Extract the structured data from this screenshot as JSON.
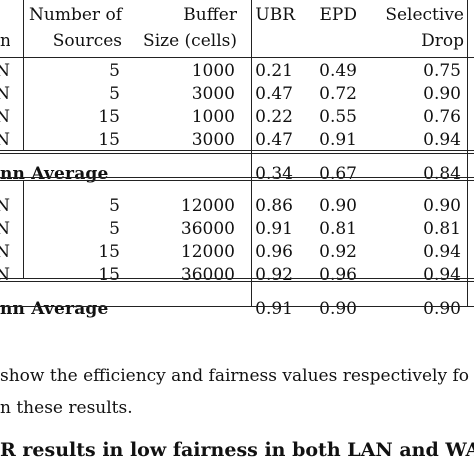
{
  "table": {
    "header": {
      "row1": {
        "sources": "Number of",
        "buffer": "Buffer",
        "ubr": "UBR",
        "epd": "EPD",
        "selective": "Selective"
      },
      "row2": {
        "config_tail": "n",
        "sources": "Sources",
        "buffer": "Size (cells)",
        "selective": "Drop"
      }
    },
    "lan_rows": [
      {
        "config": "N",
        "sources": "5",
        "buffer": "1000",
        "ubr": "0.21",
        "epd": "0.49",
        "selective": "0.75"
      },
      {
        "config": "N",
        "sources": "5",
        "buffer": "3000",
        "ubr": "0.47",
        "epd": "0.72",
        "selective": "0.90"
      },
      {
        "config": "N",
        "sources": "15",
        "buffer": "1000",
        "ubr": "0.22",
        "epd": "0.55",
        "selective": "0.76"
      },
      {
        "config": "N",
        "sources": "15",
        "buffer": "3000",
        "ubr": "0.47",
        "epd": "0.91",
        "selective": "0.94"
      }
    ],
    "lan_average": {
      "label": "nn Average",
      "ubr": "0.34",
      "epd": "0.67",
      "selective": "0.84"
    },
    "wan_rows": [
      {
        "config": "N",
        "sources": "5",
        "buffer": "12000",
        "ubr": "0.86",
        "epd": "0.90",
        "selective": "0.90"
      },
      {
        "config": "N",
        "sources": "5",
        "buffer": "36000",
        "ubr": "0.91",
        "epd": "0.81",
        "selective": "0.81"
      },
      {
        "config": "N",
        "sources": "15",
        "buffer": "12000",
        "ubr": "0.96",
        "epd": "0.92",
        "selective": "0.94"
      },
      {
        "config": "N",
        "sources": "15",
        "buffer": "36000",
        "ubr": "0.92",
        "epd": "0.96",
        "selective": "0.94"
      }
    ],
    "wan_average": {
      "label": "nn Average",
      "ubr": "0.91",
      "epd": "0.90",
      "selective": "0.90"
    }
  },
  "body_text": {
    "line1": "show the efficiency and fairness values respectively fo",
    "line2": "n these results.",
    "line3": "R results in low fairness in both LAN and WAN"
  }
}
